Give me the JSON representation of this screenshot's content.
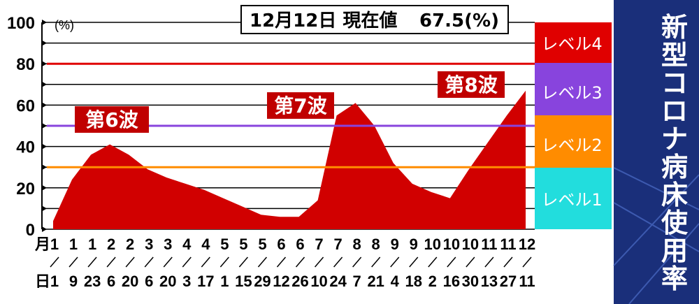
{
  "title": "新型コロナ病床使用率",
  "current": {
    "label": "12月12日 現在値",
    "value": "67.5(%)"
  },
  "colors": {
    "area": "#d10000",
    "level4": "#e00000",
    "level3": "#8844dd",
    "level2": "#ff8c00",
    "level1": "#22dddd",
    "title_bg": "#1a2f7a"
  },
  "levels": [
    {
      "name": "レベル4",
      "threshold": 80
    },
    {
      "name": "レベル3",
      "threshold": 50
    },
    {
      "name": "レベル2",
      "threshold": 30
    },
    {
      "name": "レベル1",
      "threshold": 0
    }
  ],
  "waves": [
    "第6波",
    "第7波",
    "第8波"
  ],
  "chart_data": {
    "type": "area",
    "ylabel": "(%)",
    "ylim": [
      0,
      100
    ],
    "yticks": [
      "0",
      "20",
      "40",
      "60",
      "80",
      "100"
    ],
    "x_month_label": "月",
    "x_day_label": "日",
    "x_ticks": [
      {
        "month": "1",
        "day": "1"
      },
      {
        "month": "1",
        "day": "9"
      },
      {
        "month": "1",
        "day": "23"
      },
      {
        "month": "2",
        "day": "6"
      },
      {
        "month": "2",
        "day": "20"
      },
      {
        "month": "3",
        "day": "6"
      },
      {
        "month": "3",
        "day": "20"
      },
      {
        "month": "4",
        "day": "3"
      },
      {
        "month": "4",
        "day": "17"
      },
      {
        "month": "5",
        "day": "1"
      },
      {
        "month": "5",
        "day": "15"
      },
      {
        "month": "5",
        "day": "29"
      },
      {
        "month": "6",
        "day": "12"
      },
      {
        "month": "6",
        "day": "26"
      },
      {
        "month": "7",
        "day": "10"
      },
      {
        "month": "7",
        "day": "24"
      },
      {
        "month": "8",
        "day": "7"
      },
      {
        "month": "8",
        "day": "21"
      },
      {
        "month": "9",
        "day": "4"
      },
      {
        "month": "9",
        "day": "18"
      },
      {
        "month": "10",
        "day": "2"
      },
      {
        "month": "10",
        "day": "16"
      },
      {
        "month": "10",
        "day": "30"
      },
      {
        "month": "11",
        "day": "13"
      },
      {
        "month": "11",
        "day": "27"
      },
      {
        "month": "12",
        "day": "11"
      }
    ],
    "dates": [
      "1/1",
      "1/9",
      "1/23",
      "2/6",
      "2/20",
      "3/6",
      "3/20",
      "4/3",
      "4/17",
      "5/1",
      "5/15",
      "5/29",
      "6/12",
      "6/26",
      "7/10",
      "7/24",
      "8/7",
      "8/21",
      "9/4",
      "9/18",
      "10/2",
      "10/16",
      "10/30",
      "11/13",
      "11/27",
      "12/11"
    ],
    "values": [
      4,
      24,
      36,
      41,
      36,
      29,
      25,
      22,
      19,
      15,
      11,
      7,
      6,
      6,
      14,
      55,
      61,
      50,
      32,
      22,
      18,
      15,
      29,
      42,
      55,
      67
    ]
  }
}
